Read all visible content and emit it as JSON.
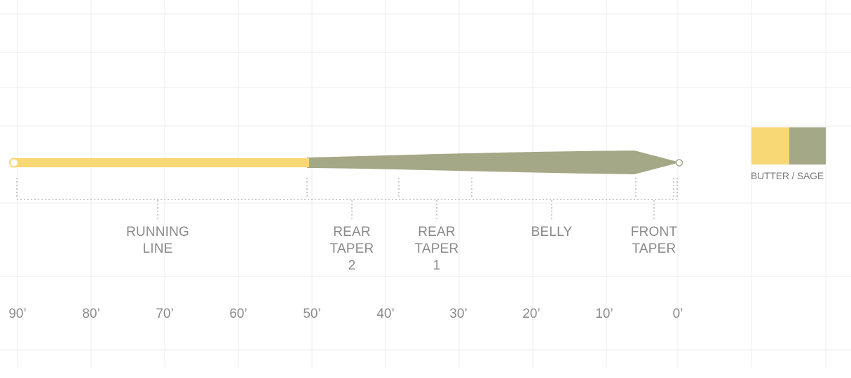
{
  "segments": [
    {
      "id": "running-line",
      "lines": [
        "RUNNING",
        "LINE"
      ]
    },
    {
      "id": "rear-taper-2",
      "lines": [
        "REAR",
        "TAPER",
        "2"
      ]
    },
    {
      "id": "rear-taper-1",
      "lines": [
        "REAR",
        "TAPER",
        "1"
      ]
    },
    {
      "id": "belly",
      "lines": [
        "BELLY"
      ]
    },
    {
      "id": "front-taper",
      "lines": [
        "FRONT",
        "TAPER"
      ]
    }
  ],
  "ruler_labels": [
    "90’",
    "80’",
    "70’",
    "60’",
    "50’",
    "40’",
    "30’",
    "20’",
    "10’",
    "0’"
  ],
  "colors": {
    "butter": "#f8d775",
    "sage": "#a4a886",
    "guide": "#9a9a9a",
    "grid": "#eeeeee",
    "text": "#8a8a8a"
  },
  "color_key": {
    "caption": "BUTTER / SAGE"
  }
}
